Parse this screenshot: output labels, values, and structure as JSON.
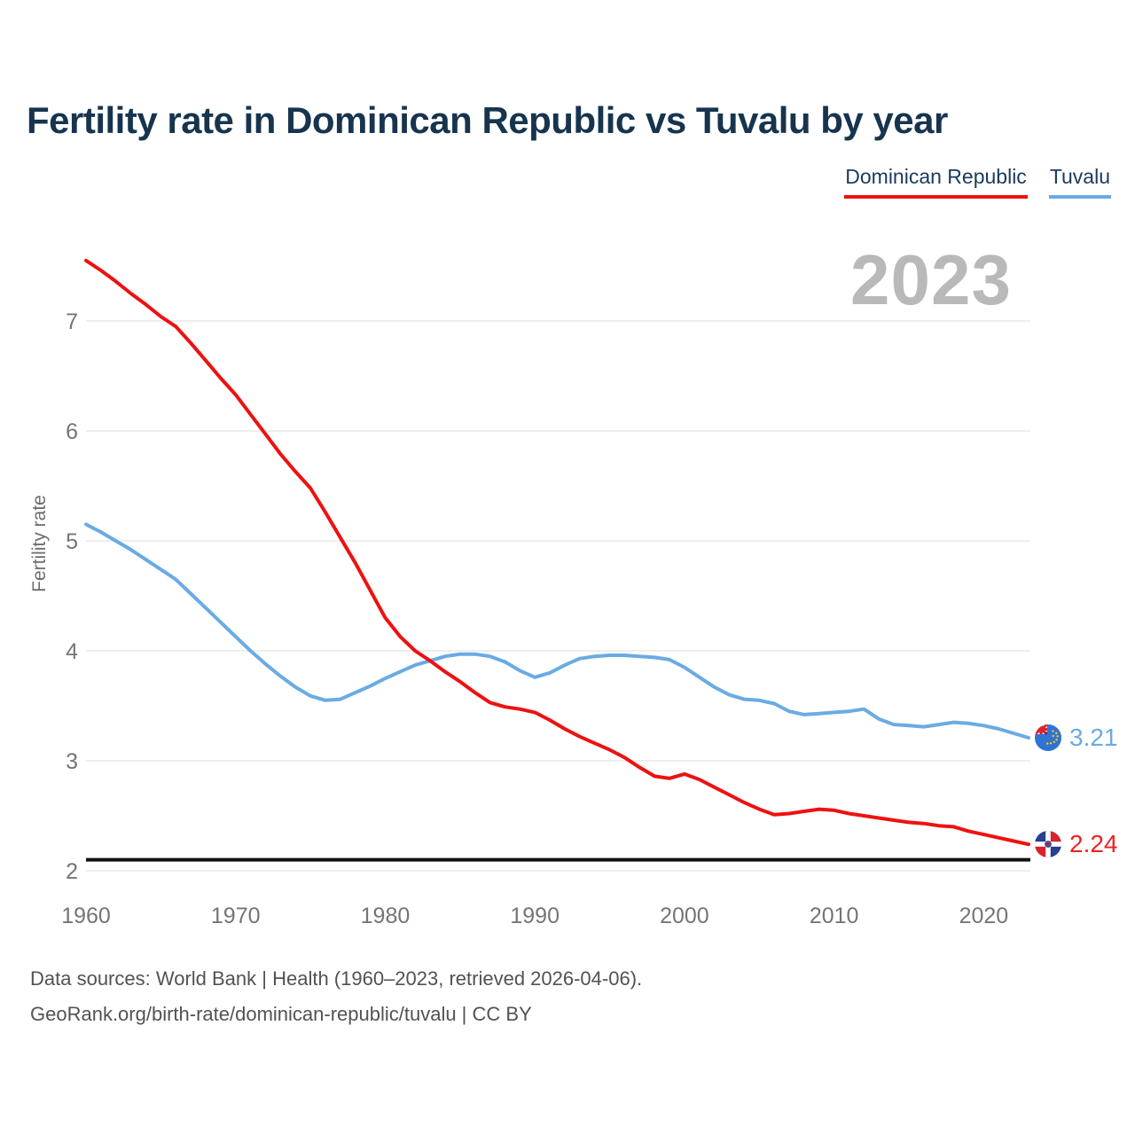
{
  "title": "Fertility rate in Dominican Republic vs Tuvalu by year",
  "watermark_year": "2023",
  "legend": [
    {
      "label": "Dominican Republic",
      "color": "#ee1111"
    },
    {
      "label": "Tuvalu",
      "color": "#6aabe3"
    }
  ],
  "ylabel": "Fertility rate",
  "footer": {
    "line1": "Data sources: World Bank | Health (1960–2023, retrieved 2026-04-06).",
    "line2": "GeoRank.org/birth-rate/dominican-republic/tuvalu | CC BY"
  },
  "chart_data": {
    "type": "line",
    "title": "Fertility rate in Dominican Republic vs Tuvalu by year",
    "xlabel": "",
    "ylabel": "Fertility rate",
    "xlim": [
      1960,
      2023
    ],
    "ylim": [
      2,
      7.6
    ],
    "grid": true,
    "legend_position": "top-right",
    "xticks": [
      1960,
      1970,
      1980,
      1990,
      2000,
      2010,
      2020
    ],
    "yticks": [
      2,
      3,
      4,
      5,
      6,
      7
    ],
    "reference_line": {
      "value": 2.1,
      "color": "#111111"
    },
    "x": [
      1960,
      1961,
      1962,
      1963,
      1964,
      1965,
      1966,
      1967,
      1968,
      1969,
      1970,
      1971,
      1972,
      1973,
      1974,
      1975,
      1976,
      1977,
      1978,
      1979,
      1980,
      1981,
      1982,
      1983,
      1984,
      1985,
      1986,
      1987,
      1988,
      1989,
      1990,
      1991,
      1992,
      1993,
      1994,
      1995,
      1996,
      1997,
      1998,
      1999,
      2000,
      2001,
      2002,
      2003,
      2004,
      2005,
      2006,
      2007,
      2008,
      2009,
      2010,
      2011,
      2012,
      2013,
      2014,
      2015,
      2016,
      2017,
      2018,
      2019,
      2020,
      2021,
      2022,
      2023
    ],
    "series": [
      {
        "name": "Dominican Republic",
        "color": "#ee1111",
        "end_label": "2.24",
        "flag": "dominican-republic",
        "values": [
          7.55,
          7.46,
          7.36,
          7.25,
          7.15,
          7.04,
          6.95,
          6.8,
          6.64,
          6.48,
          6.33,
          6.15,
          5.97,
          5.79,
          5.63,
          5.48,
          5.26,
          5.03,
          4.8,
          4.55,
          4.3,
          4.13,
          4.0,
          3.91,
          3.81,
          3.72,
          3.62,
          3.53,
          3.49,
          3.47,
          3.44,
          3.37,
          3.29,
          3.22,
          3.16,
          3.1,
          3.03,
          2.94,
          2.86,
          2.84,
          2.88,
          2.83,
          2.76,
          2.69,
          2.62,
          2.56,
          2.51,
          2.52,
          2.54,
          2.56,
          2.55,
          2.52,
          2.5,
          2.48,
          2.46,
          2.44,
          2.43,
          2.41,
          2.4,
          2.36,
          2.33,
          2.3,
          2.27,
          2.24
        ]
      },
      {
        "name": "Tuvalu",
        "color": "#6aabe3",
        "end_label": "3.21",
        "flag": "tuvalu",
        "values": [
          5.15,
          5.08,
          5.0,
          4.92,
          4.83,
          4.74,
          4.65,
          4.52,
          4.39,
          4.26,
          4.13,
          4.0,
          3.88,
          3.77,
          3.67,
          3.59,
          3.55,
          3.56,
          3.62,
          3.68,
          3.75,
          3.81,
          3.87,
          3.91,
          3.95,
          3.97,
          3.97,
          3.95,
          3.9,
          3.82,
          3.76,
          3.8,
          3.87,
          3.93,
          3.95,
          3.96,
          3.96,
          3.95,
          3.94,
          3.92,
          3.85,
          3.76,
          3.67,
          3.6,
          3.56,
          3.55,
          3.52,
          3.45,
          3.42,
          3.43,
          3.44,
          3.45,
          3.47,
          3.38,
          3.33,
          3.32,
          3.31,
          3.33,
          3.35,
          3.34,
          3.32,
          3.29,
          3.25,
          3.21
        ]
      }
    ]
  },
  "colors": {
    "title": "#17344f",
    "tick": "#757575",
    "grid": "#e8e8e8",
    "watermark": "#b9b9b9",
    "reference": "#111111",
    "footer": "#525252"
  }
}
